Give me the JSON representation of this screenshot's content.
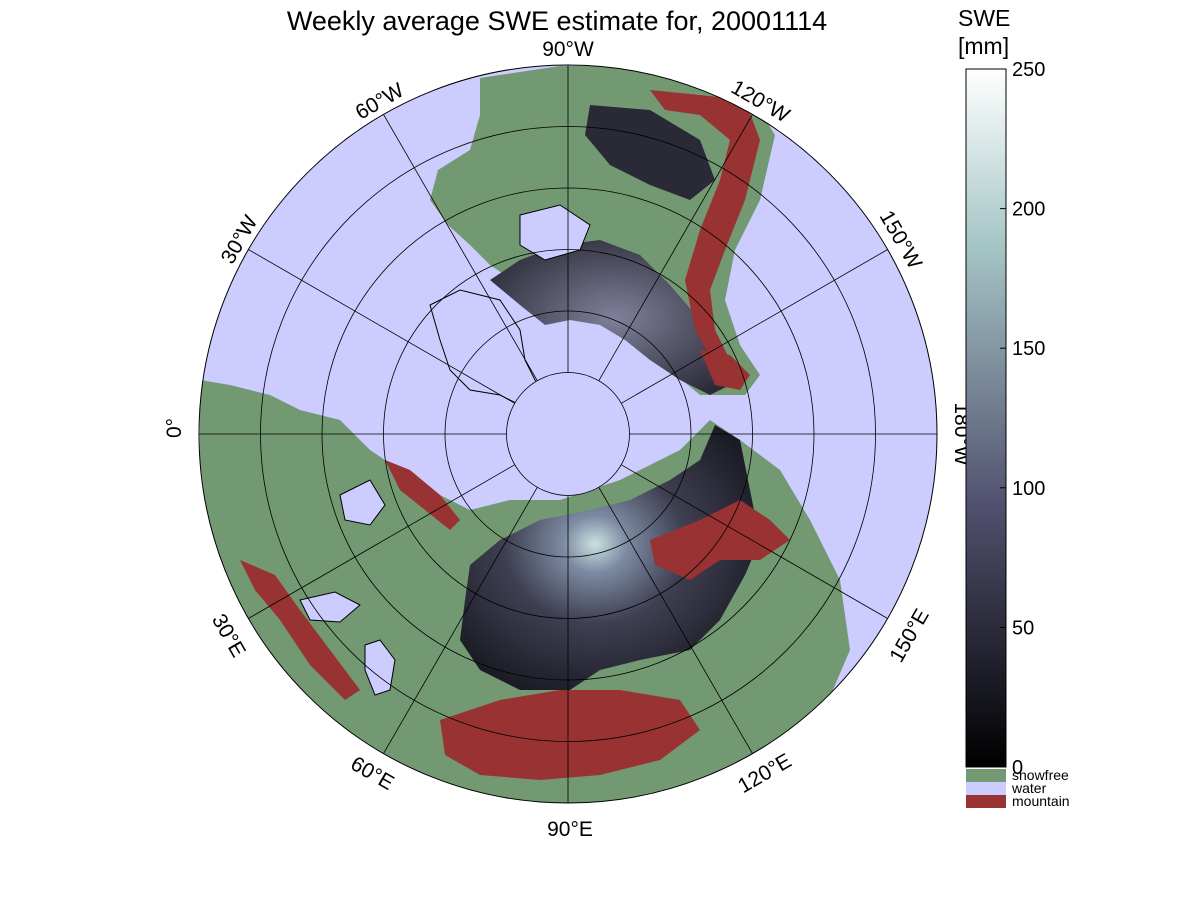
{
  "title": "Weekly average SWE estimate for, 20001114",
  "map": {
    "projection": "north polar stereographic",
    "center": "North Pole",
    "longitude_labels": [
      {
        "lon": -90,
        "label": "90°W"
      },
      {
        "lon": -60,
        "label": "60°W"
      },
      {
        "lon": -120,
        "label": "120°W"
      },
      {
        "lon": -30,
        "label": "30°W"
      },
      {
        "lon": -150,
        "label": "150°W"
      },
      {
        "lon": 0,
        "label": "0°"
      },
      {
        "lon": 180,
        "label": "180°W"
      },
      {
        "lon": 30,
        "label": "30°E"
      },
      {
        "lon": 150,
        "label": "150°E"
      },
      {
        "lon": 60,
        "label": "60°E"
      },
      {
        "lon": 120,
        "label": "120°E"
      },
      {
        "lon": 90,
        "label": "90°E"
      }
    ],
    "meridian_step_deg": 30,
    "parallel_rings": 5,
    "colors": {
      "water": "#ccccff",
      "snowfree": "#739972",
      "mountain": "#993333",
      "coastline": "#000000",
      "grid": "#000000"
    }
  },
  "colorbar": {
    "title_line1": "SWE",
    "title_line2": "[mm]",
    "min": 0,
    "max": 250,
    "ticks": [
      "0",
      "50",
      "100",
      "150",
      "200",
      "250"
    ],
    "colormap": "bone",
    "legend": [
      {
        "label": "snowfree",
        "color": "#739972"
      },
      {
        "label": "water",
        "color": "#ccccff"
      },
      {
        "label": "mountain",
        "color": "#993333"
      }
    ]
  }
}
